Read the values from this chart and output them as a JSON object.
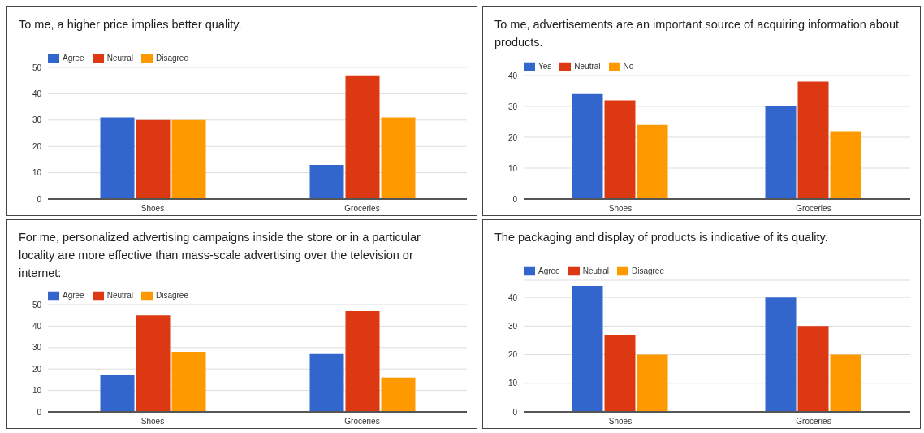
{
  "chart_data": [
    {
      "type": "bar",
      "title": "To me, a higher price implies better quality.",
      "categories": [
        "Shoes",
        "Groceries"
      ],
      "series": [
        {
          "name": "Agree",
          "color": "#3366cc",
          "values": [
            31,
            13
          ]
        },
        {
          "name": "Neutral",
          "color": "#dc3912",
          "values": [
            30,
            47
          ]
        },
        {
          "name": "Disagree",
          "color": "#ff9900",
          "values": [
            30,
            31
          ]
        }
      ],
      "ylim": [
        0,
        50
      ],
      "yticks": [
        0,
        10,
        20,
        30,
        40,
        50
      ],
      "grid": "y",
      "legend": "top left"
    },
    {
      "type": "bar",
      "title": "To me, advertisements are an important source of acquiring information about products.",
      "categories": [
        "Shoes",
        "Groceries"
      ],
      "series": [
        {
          "name": "Yes",
          "color": "#3366cc",
          "values": [
            34,
            30
          ]
        },
        {
          "name": "Neutral",
          "color": "#dc3912",
          "values": [
            32,
            38
          ]
        },
        {
          "name": "No",
          "color": "#ff9900",
          "values": [
            24,
            22
          ]
        }
      ],
      "ylim": [
        0,
        40
      ],
      "yticks": [
        0,
        10,
        20,
        30,
        40
      ],
      "grid": "y",
      "legend": "top left"
    },
    {
      "type": "bar",
      "title": "For me, personalized advertising campaigns inside the store or in a particular locality are more effective than mass-scale advertising over the television or internet:",
      "categories": [
        "Shoes",
        "Groceries"
      ],
      "series": [
        {
          "name": "Agree",
          "color": "#3366cc",
          "values": [
            17,
            27
          ]
        },
        {
          "name": "Neutral",
          "color": "#dc3912",
          "values": [
            45,
            47
          ]
        },
        {
          "name": "Disagree",
          "color": "#ff9900",
          "values": [
            28,
            16
          ]
        }
      ],
      "ylim": [
        0,
        50
      ],
      "yticks": [
        0,
        10,
        20,
        30,
        40,
        50
      ],
      "grid": "y",
      "legend": "top left"
    },
    {
      "type": "bar",
      "title": "The packaging and display of products is indicative of its quality.",
      "categories": [
        "Shoes",
        "Groceries"
      ],
      "series": [
        {
          "name": "Agree",
          "color": "#3366cc",
          "values": [
            44,
            40
          ]
        },
        {
          "name": "Neutral",
          "color": "#dc3912",
          "values": [
            27,
            30
          ]
        },
        {
          "name": "Disagree",
          "color": "#ff9900",
          "values": [
            20,
            20
          ]
        }
      ],
      "ylim": [
        0,
        46
      ],
      "yticks": [
        0,
        10,
        20,
        30,
        40
      ],
      "grid": "y",
      "legend": "top left"
    }
  ]
}
